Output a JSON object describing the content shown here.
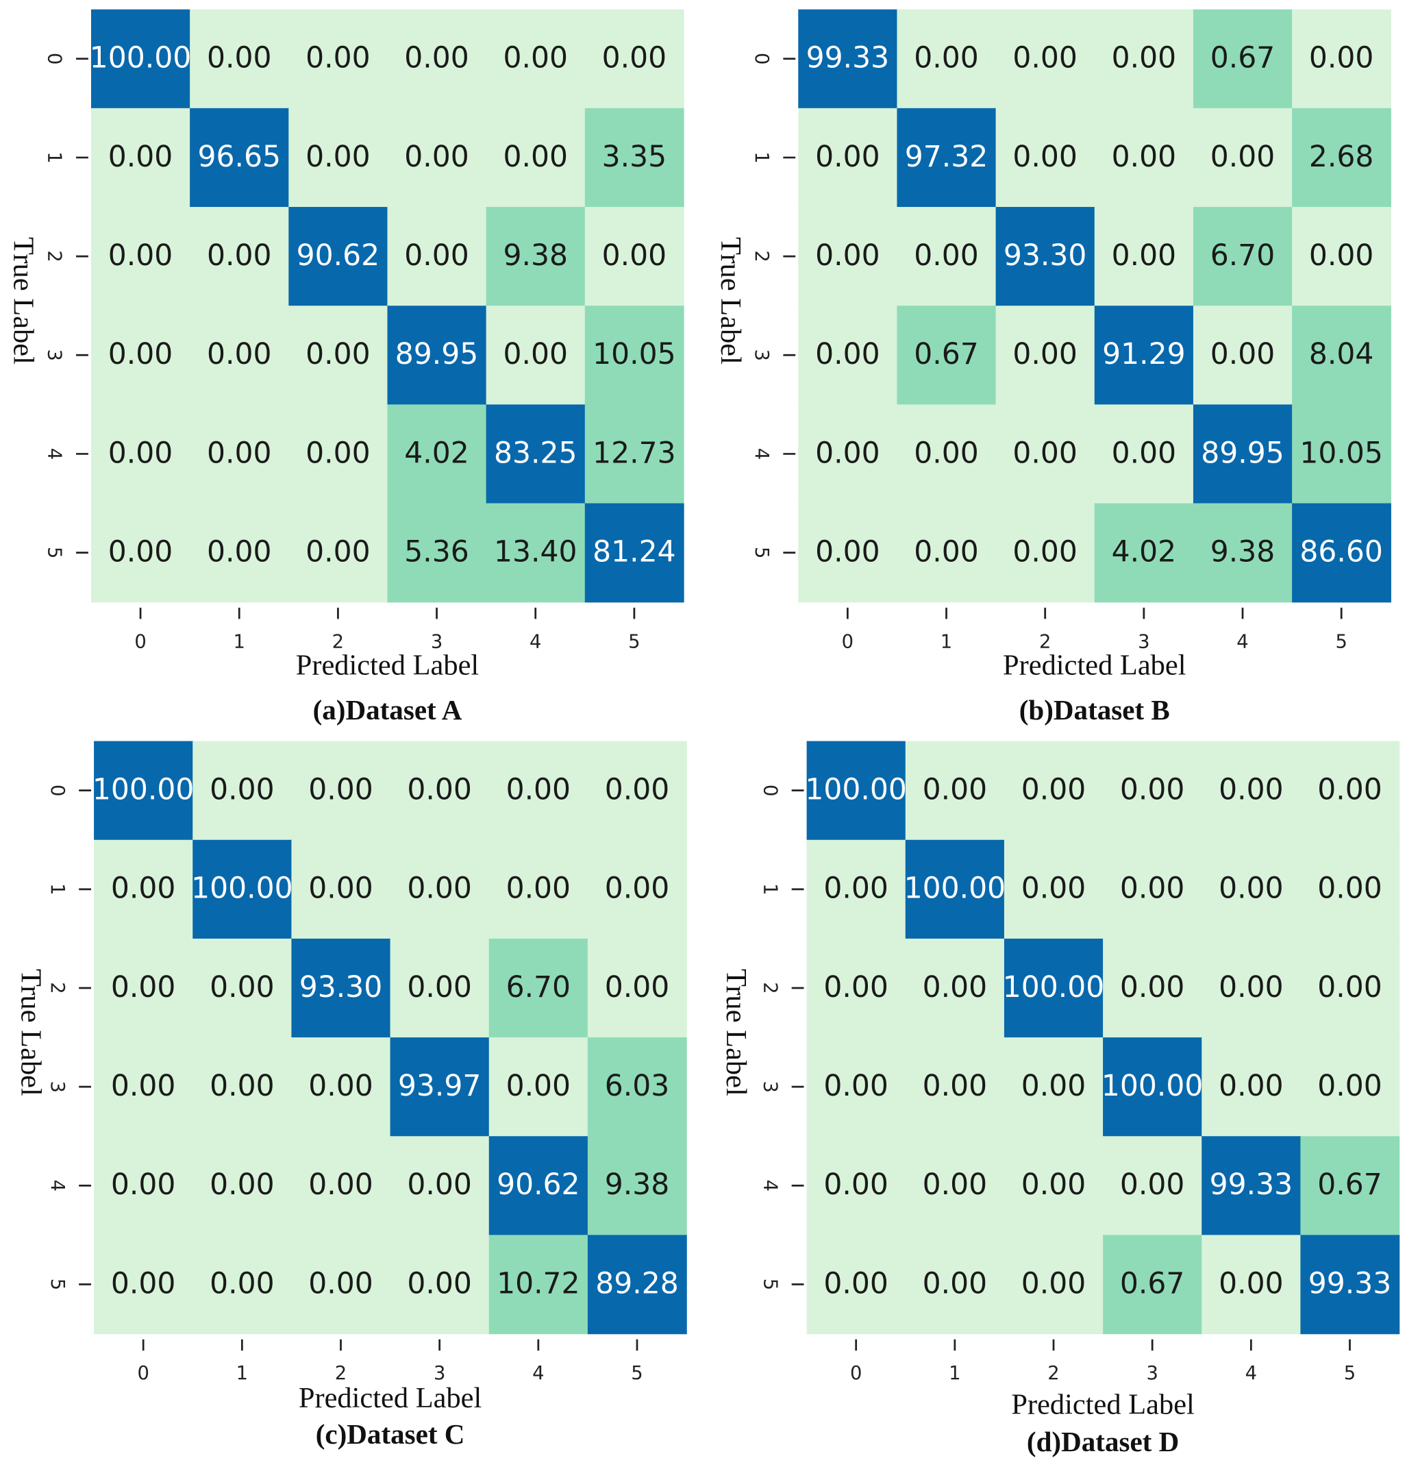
{
  "chart_data": [
    {
      "type": "heatmap",
      "title": "(a)Dataset A",
      "xlabel": "Predicted Label",
      "ylabel": "True Label",
      "categories": [
        "0",
        "1",
        "2",
        "3",
        "4",
        "5"
      ],
      "row_categories": [
        "0",
        "1",
        "2",
        "3",
        "4",
        "5"
      ],
      "colors": [
        "#d8f3d9",
        "#8fdbb8",
        "#0868ac"
      ],
      "values": [
        [
          100,
          0,
          0,
          0,
          0,
          0
        ],
        [
          0,
          96.65,
          0,
          0,
          0,
          3.35
        ],
        [
          0,
          0,
          90.62,
          0,
          9.38,
          0
        ],
        [
          0,
          0,
          0,
          89.95,
          0,
          10.05
        ],
        [
          0,
          0,
          0,
          4.02,
          83.25,
          12.73
        ],
        [
          0,
          0,
          0,
          5.36,
          13.4,
          81.24
        ]
      ],
      "value_labels": [
        [
          "100.00",
          "0.00",
          "0.00",
          "0.00",
          "0.00",
          "0.00"
        ],
        [
          "0.00",
          "96.65",
          "0.00",
          "0.00",
          "0.00",
          "3.35"
        ],
        [
          "0.00",
          "0.00",
          "90.62",
          "0.00",
          "9.38",
          "0.00"
        ],
        [
          "0.00",
          "0.00",
          "0.00",
          "89.95",
          "0.00",
          "10.05"
        ],
        [
          "0.00",
          "0.00",
          "0.00",
          "4.02",
          "83.25",
          "12.73"
        ],
        [
          "0.00",
          "0.00",
          "0.00",
          "5.36",
          "13.40",
          "81.24"
        ]
      ]
    },
    {
      "type": "heatmap",
      "title": "(b)Dataset B",
      "xlabel": "Predicted Label",
      "ylabel": "True Label",
      "categories": [
        "0",
        "1",
        "2",
        "3",
        "4",
        "5"
      ],
      "row_categories": [
        "0",
        "1",
        "2",
        "3",
        "4",
        "5"
      ],
      "colors": [
        "#d8f3d9",
        "#8fdbb8",
        "#0868ac"
      ],
      "values": [
        [
          99.33,
          0,
          0,
          0,
          0.67,
          0
        ],
        [
          0,
          97.32,
          0,
          0,
          0,
          2.68
        ],
        [
          0,
          0,
          93.3,
          0,
          6.7,
          0
        ],
        [
          0,
          0.67,
          0,
          91.29,
          0,
          8.04
        ],
        [
          0,
          0,
          0,
          0,
          89.95,
          10.05
        ],
        [
          0,
          0,
          0,
          4.02,
          9.38,
          86.6
        ]
      ],
      "value_labels": [
        [
          "99.33",
          "0.00",
          "0.00",
          "0.00",
          "0.67",
          "0.00"
        ],
        [
          "0.00",
          "97.32",
          "0.00",
          "0.00",
          "0.00",
          "2.68"
        ],
        [
          "0.00",
          "0.00",
          "93.30",
          "0.00",
          "6.70",
          "0.00"
        ],
        [
          "0.00",
          "0.67",
          "0.00",
          "91.29",
          "0.00",
          "8.04"
        ],
        [
          "0.00",
          "0.00",
          "0.00",
          "0.00",
          "89.95",
          "10.05"
        ],
        [
          "0.00",
          "0.00",
          "0.00",
          "4.02",
          "9.38",
          "86.60"
        ]
      ]
    },
    {
      "type": "heatmap",
      "title": "(c)Dataset C",
      "xlabel": "Predicted Label",
      "ylabel": "True Label",
      "categories": [
        "0",
        "1",
        "2",
        "3",
        "4",
        "5"
      ],
      "row_categories": [
        "0",
        "1",
        "2",
        "3",
        "4",
        "5"
      ],
      "colors": [
        "#d8f3d9",
        "#8fdbb8",
        "#0868ac"
      ],
      "values": [
        [
          100,
          0,
          0,
          0,
          0,
          0
        ],
        [
          0,
          100,
          0,
          0,
          0,
          0
        ],
        [
          0,
          0,
          93.3,
          0,
          6.7,
          0
        ],
        [
          0,
          0,
          0,
          93.97,
          0,
          6.03
        ],
        [
          0,
          0,
          0,
          0,
          90.62,
          9.38
        ],
        [
          0,
          0,
          0,
          0,
          10.72,
          89.28
        ]
      ],
      "value_labels": [
        [
          "100.00",
          "0.00",
          "0.00",
          "0.00",
          "0.00",
          "0.00"
        ],
        [
          "0.00",
          "100.00",
          "0.00",
          "0.00",
          "0.00",
          "0.00"
        ],
        [
          "0.00",
          "0.00",
          "93.30",
          "0.00",
          "6.70",
          "0.00"
        ],
        [
          "0.00",
          "0.00",
          "0.00",
          "93.97",
          "0.00",
          "6.03"
        ],
        [
          "0.00",
          "0.00",
          "0.00",
          "0.00",
          "90.62",
          "9.38"
        ],
        [
          "0.00",
          "0.00",
          "0.00",
          "0.00",
          "10.72",
          "89.28"
        ]
      ]
    },
    {
      "type": "heatmap",
      "title": "(d)Dataset D",
      "xlabel": "Predicted Label",
      "ylabel": "True Label",
      "categories": [
        "0",
        "1",
        "2",
        "3",
        "4",
        "5"
      ],
      "row_categories": [
        "0",
        "1",
        "2",
        "3",
        "4",
        "5"
      ],
      "colors": [
        "#d8f3d9",
        "#8fdbb8",
        "#0868ac"
      ],
      "values": [
        [
          100,
          0,
          0,
          0,
          0,
          0
        ],
        [
          0,
          100,
          0,
          0,
          0,
          0
        ],
        [
          0,
          0,
          100,
          0,
          0,
          0
        ],
        [
          0,
          0,
          0,
          100,
          0,
          0
        ],
        [
          0,
          0,
          0,
          0,
          99.33,
          0.67
        ],
        [
          0,
          0,
          0,
          0.67,
          0,
          99.33
        ]
      ],
      "value_labels": [
        [
          "100.00",
          "0.00",
          "0.00",
          "0.00",
          "0.00",
          "0.00"
        ],
        [
          "0.00",
          "100.00",
          "0.00",
          "0.00",
          "0.00",
          "0.00"
        ],
        [
          "0.00",
          "0.00",
          "100.00",
          "0.00",
          "0.00",
          "0.00"
        ],
        [
          "0.00",
          "0.00",
          "0.00",
          "100.00",
          "0.00",
          "0.00"
        ],
        [
          "0.00",
          "0.00",
          "0.00",
          "0.00",
          "99.33",
          "0.67"
        ],
        [
          "0.00",
          "0.00",
          "0.00",
          "0.67",
          "0.00",
          "99.33"
        ]
      ]
    }
  ]
}
